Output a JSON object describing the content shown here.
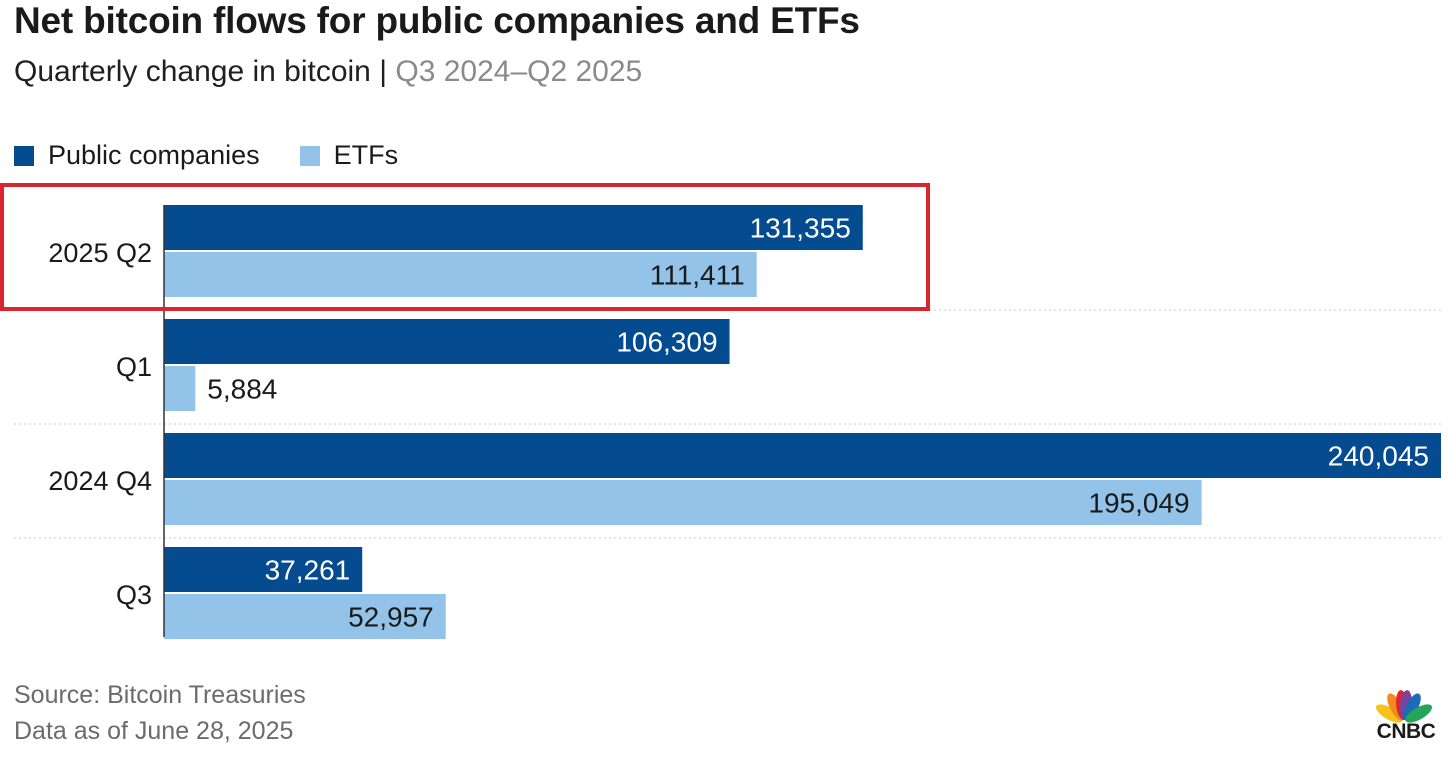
{
  "title": "Net bitcoin flows for public companies and ETFs",
  "subtitle": {
    "main": "Quarterly change in bitcoin",
    "separator": "|",
    "range": "Q3 2024–Q2 2025"
  },
  "legend": [
    {
      "label": "Public companies",
      "color": "#054b8f"
    },
    {
      "label": "ETFs",
      "color": "#93c3e8"
    }
  ],
  "chart_data": {
    "type": "bar",
    "orientation": "horizontal",
    "title": "Net bitcoin flows for public companies and ETFs",
    "subtitle": "Quarterly change in bitcoin | Q3 2024–Q2 2025",
    "categories": [
      "2025 Q2",
      "Q1",
      "2024 Q4",
      "Q3"
    ],
    "series": [
      {
        "name": "Public companies",
        "color": "#054b8f",
        "values": [
          131355,
          106309,
          240045,
          37261
        ],
        "labels": [
          "131,355",
          "106,309",
          "240,045",
          "37,261"
        ]
      },
      {
        "name": "ETFs",
        "color": "#93c3e8",
        "values": [
          111411,
          5884,
          195049,
          52957
        ],
        "labels": [
          "111,411",
          "5,884",
          "195,049",
          "52,957"
        ]
      }
    ],
    "xlim": [
      0,
      240045
    ],
    "xlabel": "",
    "ylabel": "",
    "grid": false,
    "legend_position": "top-left",
    "highlight": {
      "category": "2025 Q2",
      "color": "#d9262e"
    }
  },
  "footer": {
    "source": "Source: Bitcoin Treasuries",
    "date": "Data as of June 28, 2025"
  },
  "logo": {
    "text": "CNBC",
    "colors": [
      "#f9c11c",
      "#f38a20",
      "#e4222e",
      "#7b4399",
      "#1c6bb8",
      "#25a55a"
    ]
  }
}
